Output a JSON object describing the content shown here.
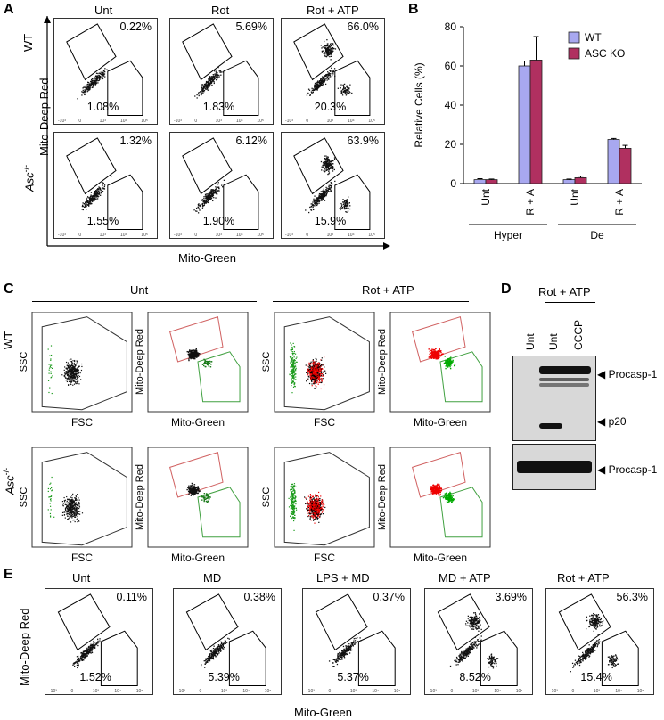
{
  "panelA": {
    "letter": "A",
    "cols": [
      "Unt",
      "Rot",
      "Rot + ATP"
    ],
    "rows": [
      "WT",
      "Asc-/-"
    ],
    "ylabel": "Mito-Deep Red",
    "xlabel": "Mito-Green",
    "values": [
      [
        {
          "upper": "0.22%",
          "lower": "1.08%"
        },
        {
          "upper": "5.69%",
          "lower": "1.83%"
        },
        {
          "upper": "66.0%",
          "lower": "20.3%"
        }
      ],
      [
        {
          "upper": "1.32%",
          "lower": "1.55%"
        },
        {
          "upper": "6.12%",
          "lower": "1.90%"
        },
        {
          "upper": "63.9%",
          "lower": "15.9%"
        }
      ]
    ]
  },
  "panelB": {
    "letter": "B"
  },
  "chart_data": {
    "type": "bar",
    "categories": [
      "Unt",
      "R + A",
      "Unt",
      "R + A"
    ],
    "groups": [
      "Hyper",
      "De"
    ],
    "series": [
      {
        "name": "WT",
        "values": [
          2,
          60,
          2,
          22.5
        ],
        "errors": [
          0.5,
          2.5,
          0.3,
          0.5
        ],
        "color": "#a8a8f0"
      },
      {
        "name": "ASC KO",
        "values": [
          2,
          63,
          3,
          18
        ],
        "errors": [
          0.3,
          12,
          0.8,
          1.5
        ],
        "color": "#b03060"
      }
    ],
    "ylabel": "Relative Cells (%)",
    "ylim": [
      0,
      80
    ],
    "yticks": [
      0,
      20,
      40,
      60,
      80
    ],
    "legend_position": "top-right"
  },
  "panelC": {
    "letter": "C",
    "groups": [
      "Unt",
      "Rot + ATP"
    ],
    "rows": [
      "WT",
      "Asc-/-"
    ],
    "ssc": "SSC",
    "fsc": "FSC",
    "ylabel": "Mito-Deep Red",
    "xlabel": "Mito-Green"
  },
  "panelD": {
    "letter": "D",
    "treatment": "Rot + ATP",
    "lanes": [
      "Unt",
      "Unt",
      "CCCP"
    ],
    "bands": [
      "Procasp-1",
      "p20",
      "Procasp-1"
    ]
  },
  "panelE": {
    "letter": "E",
    "cols": [
      "Unt",
      "MD",
      "LPS + MD",
      "MD + ATP",
      "Rot + ATP"
    ],
    "ylabel": "Mito-Deep Red",
    "xlabel": "Mito-Green",
    "values": [
      {
        "upper": "0.11%",
        "lower": "1.52%"
      },
      {
        "upper": "0.38%",
        "lower": "5.39%"
      },
      {
        "upper": "0.37%",
        "lower": "5.37%"
      },
      {
        "upper": "3.69%",
        "lower": "8.52%"
      },
      {
        "upper": "56.3%",
        "lower": "15.4%"
      }
    ]
  }
}
